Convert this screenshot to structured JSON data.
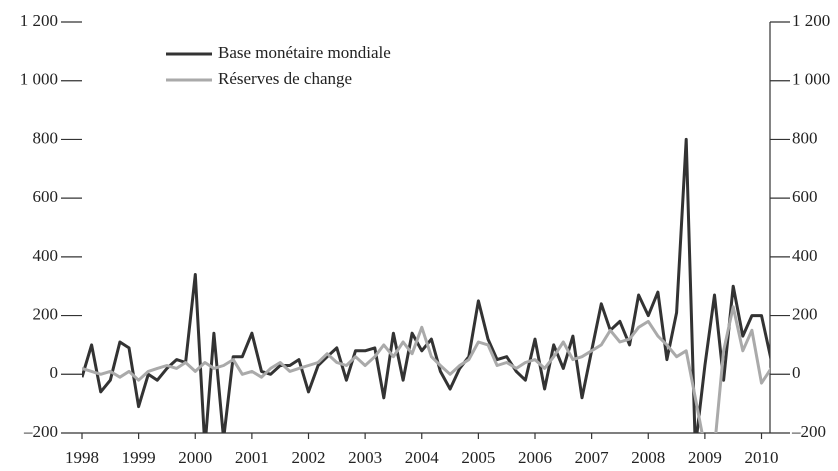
{
  "chart_data": {
    "type": "line",
    "x": [
      1998.0,
      1998.17,
      1998.33,
      1998.5,
      1998.67,
      1998.83,
      1999.0,
      1999.17,
      1999.33,
      1999.5,
      1999.67,
      1999.83,
      2000.0,
      2000.17,
      2000.33,
      2000.5,
      2000.67,
      2000.83,
      2001.0,
      2001.17,
      2001.33,
      2001.5,
      2001.67,
      2001.83,
      2002.0,
      2002.17,
      2002.33,
      2002.5,
      2002.67,
      2002.83,
      2003.0,
      2003.17,
      2003.33,
      2003.5,
      2003.67,
      2003.83,
      2004.0,
      2004.17,
      2004.33,
      2004.5,
      2004.67,
      2004.83,
      2005.0,
      2005.17,
      2005.33,
      2005.5,
      2005.67,
      2005.83,
      2006.0,
      2006.17,
      2006.33,
      2006.5,
      2006.67,
      2006.83,
      2007.0,
      2007.17,
      2007.33,
      2007.5,
      2007.67,
      2007.83,
      2008.0,
      2008.17,
      2008.33,
      2008.5,
      2008.67,
      2008.83,
      2009.0,
      2009.17,
      2009.33,
      2009.5,
      2009.67,
      2009.83,
      2010.0,
      2010.17
    ],
    "series": [
      {
        "name": "Base monétaire mondiale",
        "color": "#333333",
        "values": [
          -10,
          100,
          -60,
          -20,
          110,
          90,
          -110,
          0,
          -20,
          20,
          50,
          40,
          340,
          -250,
          140,
          -220,
          60,
          60,
          140,
          10,
          0,
          30,
          30,
          50,
          -60,
          30,
          60,
          90,
          -20,
          80,
          80,
          90,
          -80,
          140,
          -20,
          140,
          80,
          120,
          10,
          -50,
          20,
          60,
          250,
          120,
          50,
          60,
          10,
          -20,
          120,
          -50,
          100,
          20,
          130,
          -80,
          80,
          240,
          150,
          180,
          100,
          270,
          200,
          280,
          50,
          210,
          800,
          -250,
          30,
          270,
          -20,
          300,
          130,
          200,
          200,
          50
        ]
      },
      {
        "name": "Réserves de change",
        "color": "#aaaaaa",
        "values": [
          20,
          10,
          0,
          10,
          -10,
          10,
          -20,
          10,
          20,
          30,
          20,
          40,
          10,
          40,
          20,
          30,
          50,
          0,
          10,
          -10,
          20,
          40,
          10,
          20,
          30,
          40,
          70,
          40,
          30,
          60,
          30,
          60,
          100,
          60,
          110,
          70,
          160,
          60,
          30,
          0,
          30,
          50,
          110,
          100,
          30,
          40,
          20,
          40,
          50,
          20,
          60,
          110,
          50,
          60,
          80,
          100,
          150,
          110,
          120,
          160,
          180,
          130,
          100,
          60,
          80,
          -80,
          -250,
          -250,
          80,
          230,
          80,
          150,
          -30,
          20
        ]
      }
    ],
    "xlim": [
      1998,
      2010.15
    ],
    "xticks": [
      1998,
      1999,
      2000,
      2001,
      2002,
      2003,
      2004,
      2005,
      2006,
      2007,
      2008,
      2009,
      2010
    ],
    "ylim": [
      -200,
      1200
    ],
    "yticks": [
      {
        "value": -200,
        "label": "–200"
      },
      0,
      200,
      400,
      600,
      800,
      {
        "value": 1000,
        "label": "1 000"
      },
      {
        "value": 1200,
        "label": "1 200"
      }
    ],
    "y2lim": [
      -200,
      1200
    ],
    "y2ticks": [
      {
        "value": -200,
        "label": "–200"
      },
      0,
      200,
      400,
      600,
      800,
      {
        "value": 1000,
        "label": "1 000"
      },
      {
        "value": 1200,
        "label": "1 200"
      }
    ],
    "legend": "upper left"
  }
}
